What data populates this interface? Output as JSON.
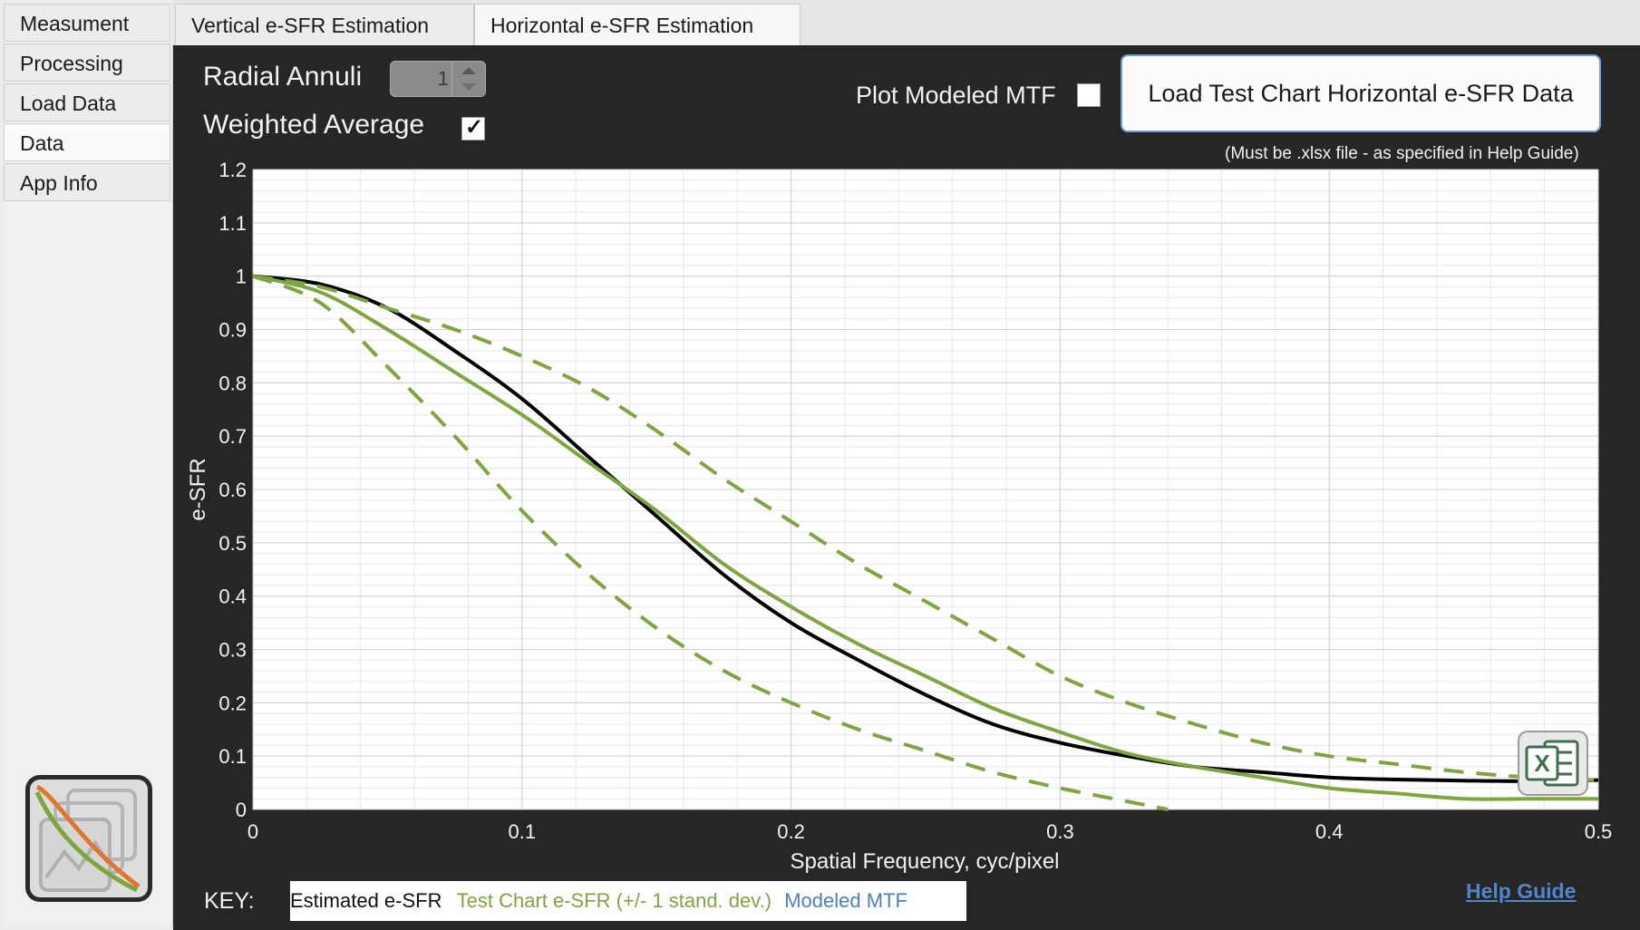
{
  "sidebar": {
    "tabs": [
      {
        "label": "Measument"
      },
      {
        "label": "Processing"
      },
      {
        "label": "Load Data"
      },
      {
        "label": "Data"
      },
      {
        "label": "App Info"
      }
    ],
    "active_index": 3
  },
  "tabs": [
    {
      "label": "Vertical e-SFR Estimation"
    },
    {
      "label": "Horizontal e-SFR Estimation"
    }
  ],
  "controls": {
    "radial_annuli_label": "Radial Annuli",
    "radial_annuli_value": "1",
    "weighted_average_label": "Weighted Average",
    "weighted_average_checked": true,
    "plot_modeled_label": "Plot Modeled MTF",
    "plot_modeled_checked": false,
    "load_button_label": "Load Test Chart Horizontal e-SFR Data",
    "load_note": "(Must be .xlsx file - as specified in Help Guide)"
  },
  "key": {
    "label": "KEY:",
    "estimated": "Estimated e-SFR",
    "test_chart": "Test Chart e-SFR (+/- 1 stand. dev.)",
    "modeled": "Modeled MTF"
  },
  "help_link": "Help Guide",
  "icons": {
    "excel": "excel-export-icon",
    "logo": "app-logo-icon"
  },
  "colors": {
    "estimated": "#000000",
    "test_chart": "#7ea63f",
    "modeled": "#4a7fc1"
  },
  "chart_data": {
    "type": "line",
    "title": "",
    "xlabel": "Spatial Frequency, cyc/pixel",
    "ylabel": "e-SFR",
    "xlim": [
      0,
      0.5
    ],
    "ylim": [
      0,
      1.2
    ],
    "xticks": [
      "0",
      "0.1",
      "0.2",
      "0.3",
      "0.4",
      "0.5"
    ],
    "yticks": [
      "0",
      "0.1",
      "0.2",
      "0.3",
      "0.4",
      "0.5",
      "0.6",
      "0.7",
      "0.8",
      "0.9",
      "1",
      "1.1",
      "1.2"
    ],
    "grid": true,
    "series": [
      {
        "name": "Estimated e-SFR",
        "style": "solid",
        "x": [
          0,
          0.025,
          0.05,
          0.075,
          0.1,
          0.125,
          0.15,
          0.175,
          0.2,
          0.225,
          0.25,
          0.275,
          0.3,
          0.325,
          0.35,
          0.375,
          0.4,
          0.425,
          0.45,
          0.475,
          0.5
        ],
        "y": [
          1.0,
          0.985,
          0.94,
          0.86,
          0.77,
          0.66,
          0.55,
          0.44,
          0.35,
          0.28,
          0.215,
          0.16,
          0.125,
          0.1,
          0.08,
          0.07,
          0.06,
          0.056,
          0.054,
          0.053,
          0.055
        ]
      },
      {
        "name": "Test Chart e-SFR (+/- 1 stand. dev.)",
        "style": "solid",
        "x": [
          0,
          0.025,
          0.05,
          0.075,
          0.1,
          0.125,
          0.15,
          0.175,
          0.2,
          0.225,
          0.25,
          0.275,
          0.3,
          0.325,
          0.35,
          0.375,
          0.4,
          0.425,
          0.45,
          0.475,
          0.5
        ],
        "y": [
          1.0,
          0.97,
          0.9,
          0.82,
          0.74,
          0.65,
          0.56,
          0.46,
          0.38,
          0.31,
          0.25,
          0.19,
          0.145,
          0.105,
          0.08,
          0.06,
          0.04,
          0.03,
          0.02,
          0.02,
          0.02
        ]
      },
      {
        "name": "",
        "style": "dashed",
        "x": [
          0,
          0.025,
          0.05,
          0.075,
          0.1,
          0.125,
          0.15,
          0.175,
          0.2,
          0.225,
          0.25,
          0.275,
          0.3,
          0.325,
          0.35,
          0.375,
          0.4,
          0.425,
          0.45,
          0.475,
          0.5
        ],
        "y": [
          1.0,
          0.98,
          0.94,
          0.9,
          0.85,
          0.79,
          0.71,
          0.62,
          0.54,
          0.46,
          0.39,
          0.32,
          0.25,
          0.2,
          0.16,
          0.125,
          0.1,
          0.085,
          0.07,
          0.06,
          0.055
        ]
      },
      {
        "name": "",
        "style": "dashed",
        "x": [
          0,
          0.025,
          0.05,
          0.075,
          0.1,
          0.125,
          0.15,
          0.175,
          0.2,
          0.225,
          0.25,
          0.275,
          0.3,
          0.325,
          0.34
        ],
        "y": [
          1.0,
          0.95,
          0.83,
          0.7,
          0.56,
          0.44,
          0.34,
          0.26,
          0.2,
          0.15,
          0.11,
          0.07,
          0.04,
          0.015,
          0.0
        ]
      }
    ]
  }
}
